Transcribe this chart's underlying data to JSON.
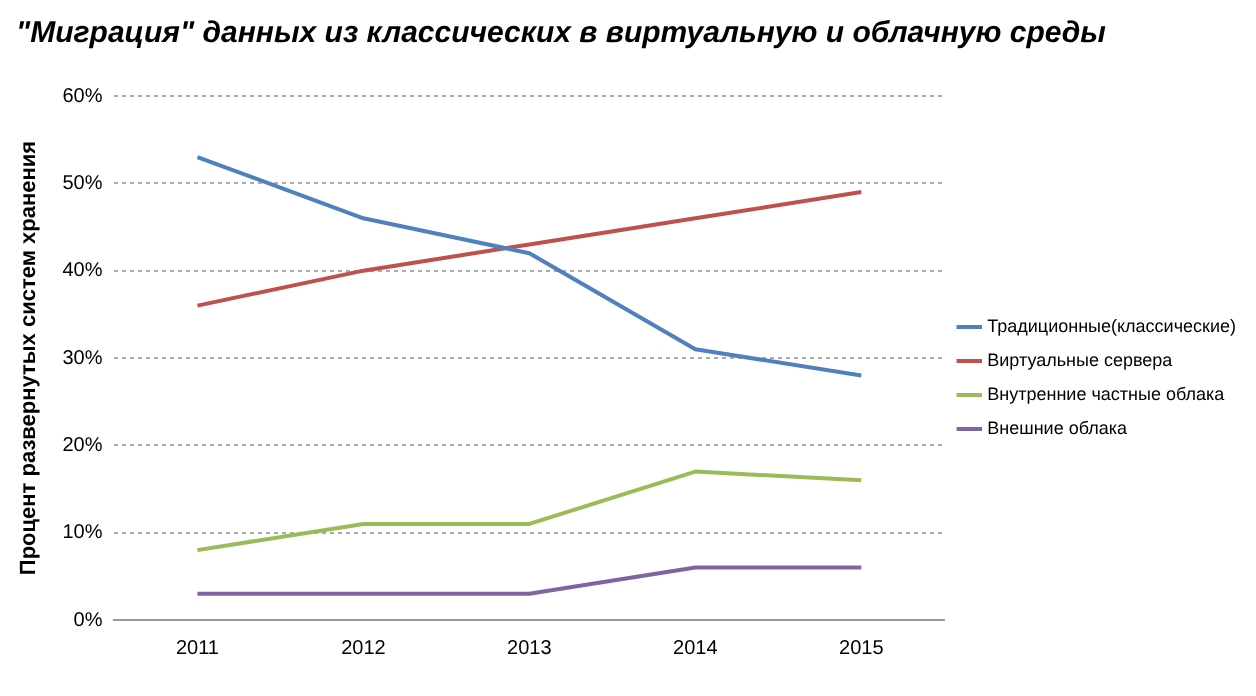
{
  "chart_data": {
    "type": "line",
    "title": "\"Миграция\" данных из классических в виртуальную и облачную среды",
    "ylabel": "Процент развернутых систем хранения",
    "categories": [
      "2011",
      "2012",
      "2013",
      "2014",
      "2015"
    ],
    "series": [
      {
        "name": "Традиционные(классические)",
        "color": "#4f81bd",
        "values": [
          53,
          46,
          42,
          31,
          28
        ]
      },
      {
        "name": "Виртуальные сервера",
        "color": "#c0504d",
        "values": [
          36,
          40,
          43,
          46,
          49
        ]
      },
      {
        "name": "Внутренние частные облака",
        "color": "#9bbb59",
        "values": [
          8,
          11,
          11,
          17,
          16
        ]
      },
      {
        "name": "Внешние облака",
        "color": "#8064a2",
        "values": [
          3,
          3,
          3,
          6,
          6
        ]
      }
    ],
    "ylim": [
      0,
      60
    ],
    "yticks": [
      {
        "value": 0,
        "label": "0%"
      },
      {
        "value": 10,
        "label": "10%"
      },
      {
        "value": 20,
        "label": "20%"
      },
      {
        "value": 30,
        "label": "30%"
      },
      {
        "value": 40,
        "label": "40%"
      },
      {
        "value": 50,
        "label": "50%"
      },
      {
        "value": 60,
        "label": "60%"
      }
    ],
    "grid": "y",
    "legend": "right",
    "marker": "none",
    "line_style": "solid"
  }
}
